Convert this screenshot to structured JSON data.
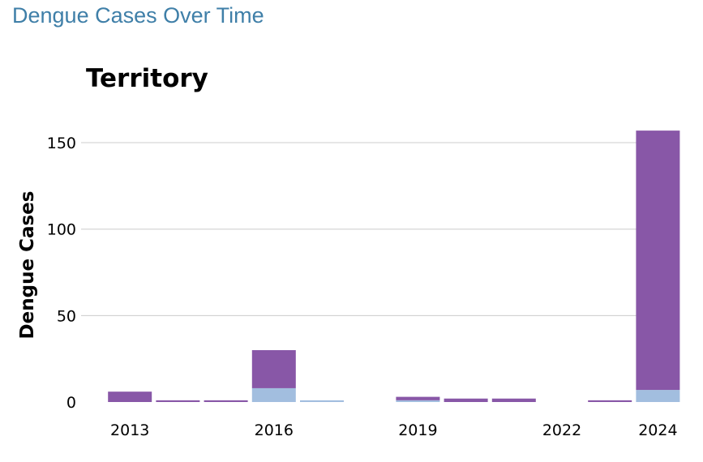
{
  "page": {
    "title": "Dengue Cases Over Time"
  },
  "chart_data": {
    "type": "bar",
    "stacked": true,
    "title": "Territory",
    "xlabel": "",
    "ylabel": "Dengue Cases",
    "x": [
      2013,
      2014,
      2015,
      2016,
      2017,
      2018,
      2019,
      2020,
      2021,
      2022,
      2023,
      2024
    ],
    "x_ticks": [
      "2013",
      "2016",
      "2019",
      "2022",
      "2024"
    ],
    "x_tick_values": [
      2013,
      2016,
      2019,
      2022,
      2024
    ],
    "y_ticks": [
      0,
      50,
      100,
      150
    ],
    "ylim": [
      0,
      160
    ],
    "grid": true,
    "legend": "none",
    "series": [
      {
        "values": [
          0,
          0,
          0,
          8,
          1,
          0,
          1,
          0,
          0,
          0,
          0,
          7
        ],
        "color": "#a2bedf"
      },
      {
        "values": [
          6,
          1,
          1,
          22,
          0,
          0,
          2,
          2,
          2,
          0,
          1,
          150
        ],
        "color": "#8857a7"
      }
    ]
  }
}
